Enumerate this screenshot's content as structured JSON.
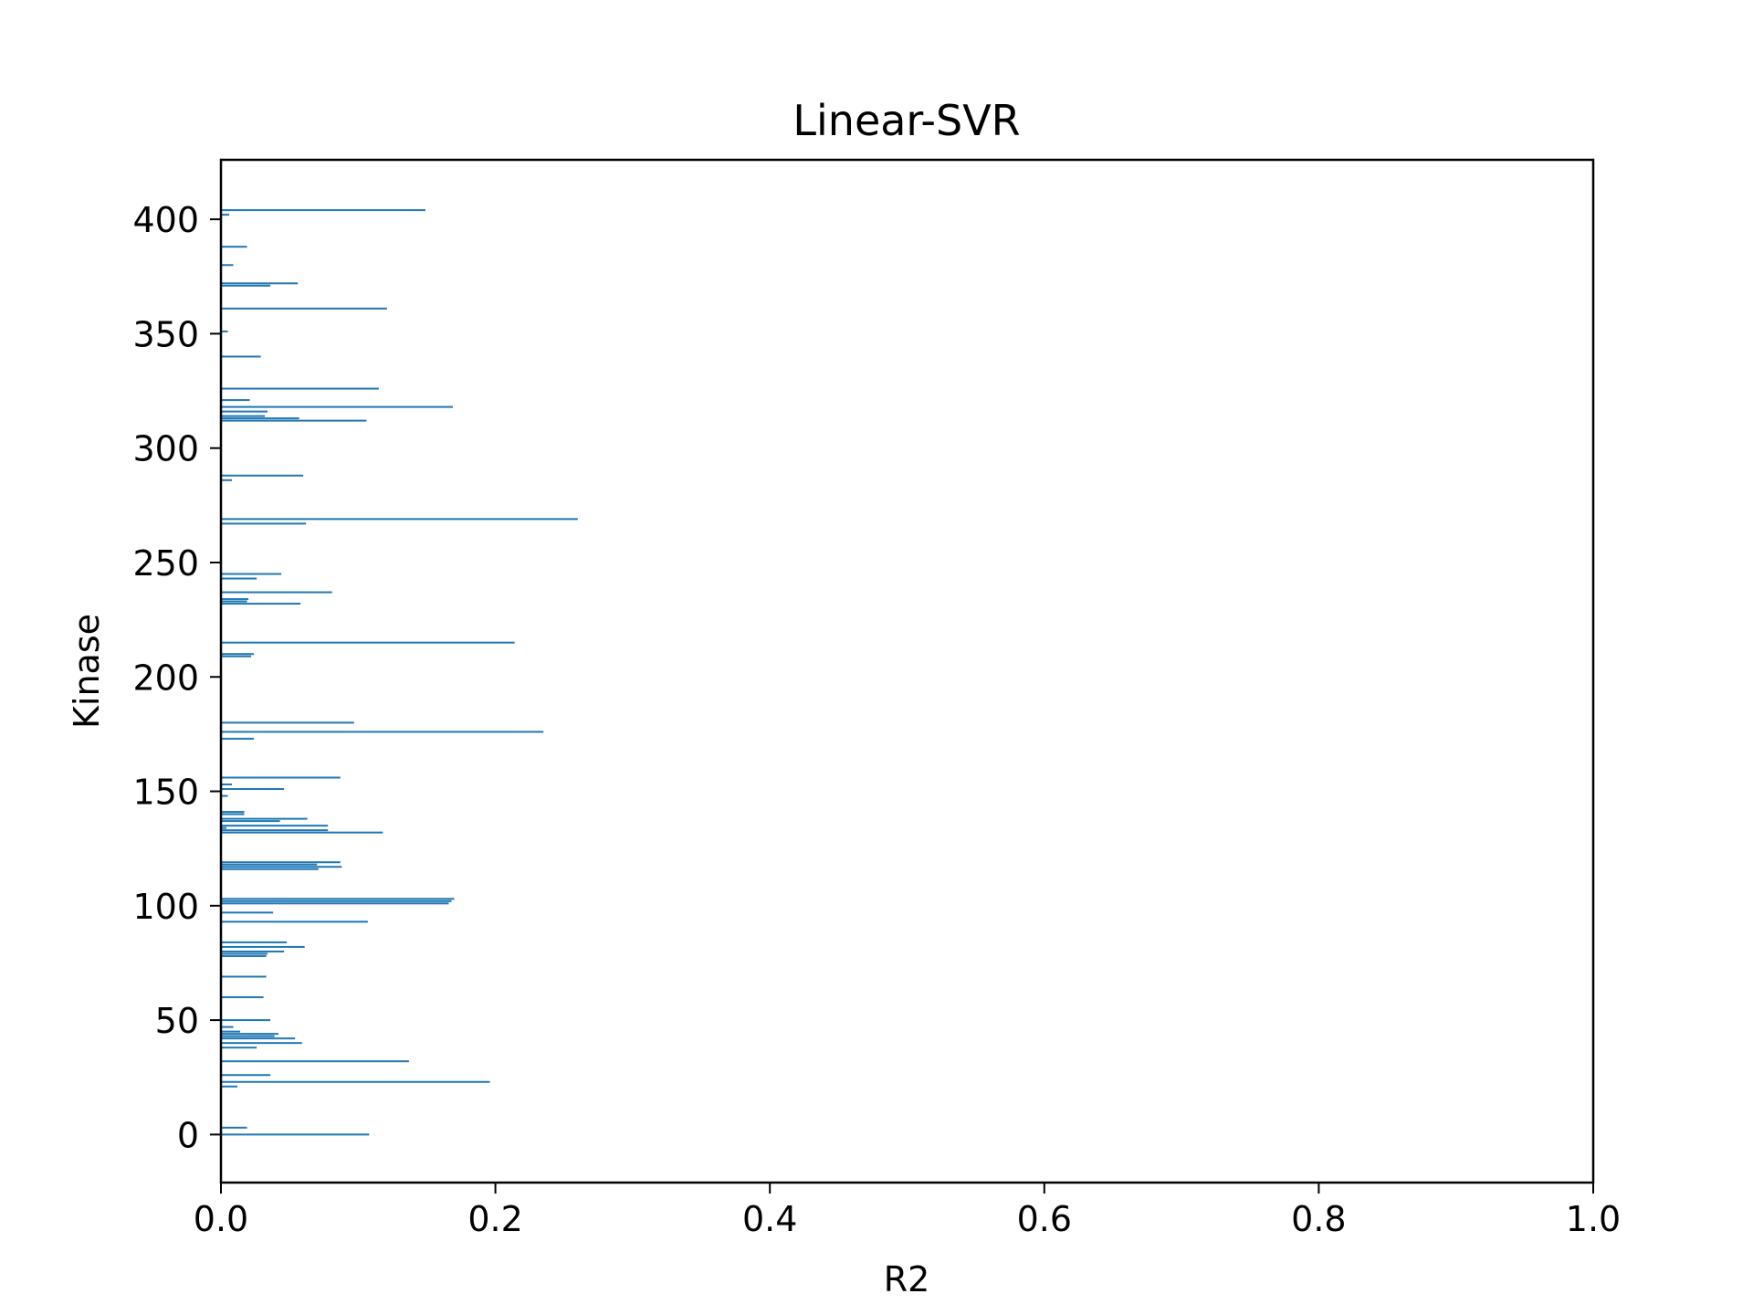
{
  "chart_data": {
    "type": "bar",
    "orientation": "horizontal",
    "title": "Linear-SVR",
    "xlabel": "R2",
    "ylabel": "Kinase",
    "xlim": [
      0,
      1
    ],
    "ylim": [
      -21,
      426
    ],
    "xticks": [
      "0.0",
      "0.2",
      "0.4",
      "0.6",
      "0.8",
      "1.0"
    ],
    "xtick_values": [
      0,
      0.2,
      0.4,
      0.6,
      0.8,
      1.0
    ],
    "yticks": [
      "0",
      "50",
      "100",
      "150",
      "200",
      "250",
      "300",
      "350",
      "400"
    ],
    "ytick_values": [
      0,
      50,
      100,
      150,
      200,
      250,
      300,
      350,
      400
    ],
    "bar_color": "#1f77b4",
    "grid": false,
    "series": [
      {
        "y": [
          0,
          3,
          21,
          23,
          26,
          32,
          38,
          40,
          42,
          43,
          44,
          45,
          47,
          50,
          60,
          69,
          78,
          79,
          80,
          82,
          84,
          93,
          97,
          101,
          102,
          103,
          116,
          117,
          118,
          119,
          132,
          133,
          134,
          135,
          137,
          138,
          140,
          141,
          148,
          151,
          153,
          156,
          173,
          176,
          180,
          209,
          210,
          215,
          232,
          233,
          234,
          237,
          243,
          245,
          267,
          269,
          286,
          288,
          312,
          313,
          314,
          316,
          318,
          321,
          326,
          340,
          351,
          361,
          371,
          372,
          380,
          388,
          402,
          404
        ],
        "values": [
          0.108,
          0.019,
          0.012,
          0.196,
          0.036,
          0.137,
          0.026,
          0.059,
          0.054,
          0.039,
          0.042,
          0.014,
          0.009,
          0.036,
          0.031,
          0.033,
          0.033,
          0.034,
          0.046,
          0.061,
          0.048,
          0.107,
          0.038,
          0.166,
          0.168,
          0.17,
          0.071,
          0.088,
          0.07,
          0.087,
          0.118,
          0.078,
          0.004,
          0.078,
          0.043,
          0.063,
          0.017,
          0.017,
          0.005,
          0.046,
          0.008,
          0.087,
          0.024,
          0.235,
          0.097,
          0.022,
          0.024,
          0.214,
          0.058,
          0.019,
          0.02,
          0.081,
          0.026,
          0.044,
          0.062,
          0.26,
          0.008,
          0.06,
          0.106,
          0.057,
          0.032,
          0.034,
          0.169,
          0.021,
          0.115,
          0.029,
          0.005,
          0.121,
          0.036,
          0.056,
          0.009,
          0.019,
          0.006,
          0.149
        ]
      }
    ]
  }
}
